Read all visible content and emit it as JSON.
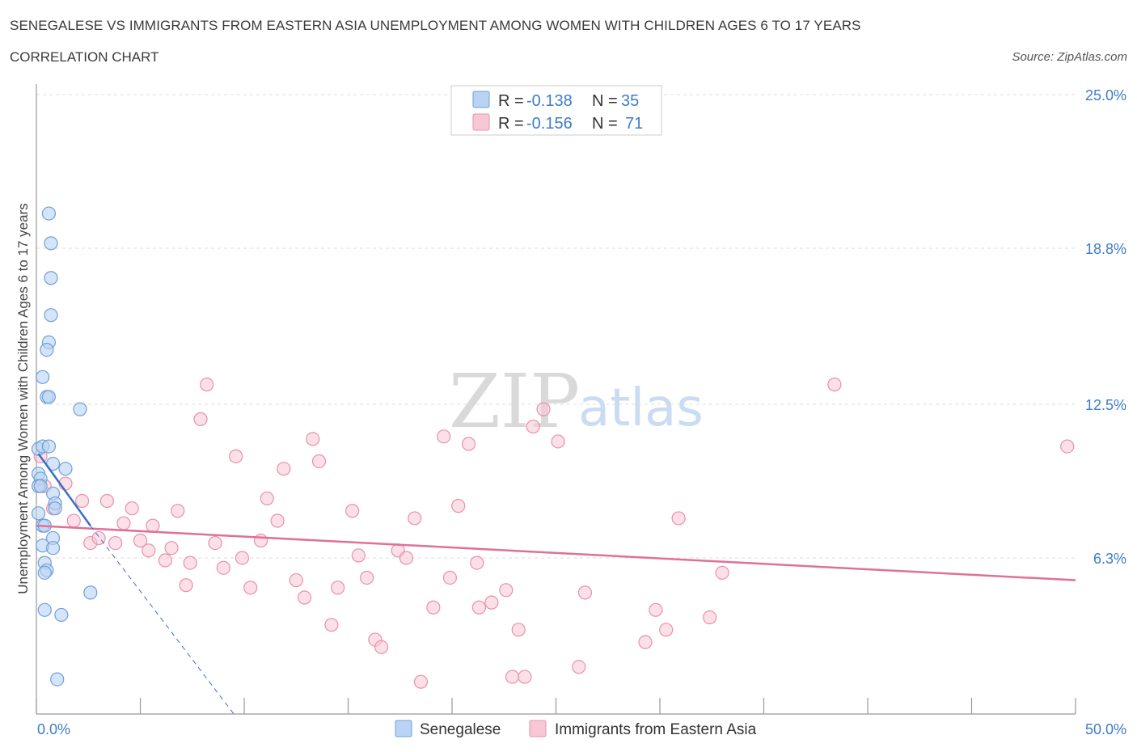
{
  "title": "SENEGALESE VS IMMIGRANTS FROM EASTERN ASIA UNEMPLOYMENT AMONG WOMEN WITH CHILDREN AGES 6 TO 17 YEARS",
  "subtitle": "CORRELATION CHART",
  "source": "Source: ZipAtlas.com",
  "watermark": {
    "zip": "ZIP",
    "atlas": "atlas"
  },
  "legend": {
    "rows": [
      {
        "r_label": "R =",
        "r_value": "-0.138",
        "n_label": "N =",
        "n_value": "35"
      },
      {
        "r_label": "R =",
        "r_value": "-0.156",
        "n_label": "N =",
        "n_value": "71"
      }
    ]
  },
  "colors": {
    "senegalese_fill": "#b9d3f5",
    "senegalese_stroke": "#6f9fd8",
    "senegalese_line": "#3a6fc6",
    "eastasia_fill": "#f8c7d6",
    "eastasia_stroke": "#e890ad",
    "eastasia_line": "#e07098",
    "axis_text": "#3d7cc9",
    "grid": "#dddddd"
  },
  "chart_data": {
    "type": "scatter",
    "title": "SENEGALESE VS IMMIGRANTS FROM EASTERN ASIA UNEMPLOYMENT AMONG WOMEN WITH CHILDREN AGES 6 TO 17 YEARS",
    "xlabel": "",
    "ylabel": "Unemployment Among Women with Children Ages 6 to 17 years",
    "xlim": [
      0,
      50
    ],
    "ylim": [
      0,
      25
    ],
    "x_tick_labels": [
      "0.0%",
      "50.0%"
    ],
    "y_ticks": [
      6.3,
      12.5,
      18.8,
      25.0
    ],
    "y_tick_labels": [
      "6.3%",
      "12.5%",
      "18.8%",
      "25.0%"
    ],
    "grid": "horizontal dashed",
    "legend_position": "top-center",
    "series": [
      {
        "name": "Senegalese",
        "r": -0.138,
        "n": 35,
        "trend": {
          "x0": 0.1,
          "y0": 10.5,
          "x1": 2.6,
          "y1": 7.6,
          "dashed_to_x": 9.5,
          "dashed_to_y": 0.0
        },
        "points": [
          [
            0.6,
            20.2
          ],
          [
            0.7,
            19.0
          ],
          [
            0.7,
            17.6
          ],
          [
            0.7,
            16.1
          ],
          [
            0.6,
            15.0
          ],
          [
            0.5,
            14.7
          ],
          [
            0.3,
            13.6
          ],
          [
            0.5,
            12.8
          ],
          [
            0.6,
            12.8
          ],
          [
            2.1,
            12.3
          ],
          [
            0.1,
            10.7
          ],
          [
            0.3,
            10.8
          ],
          [
            0.6,
            10.8
          ],
          [
            0.8,
            10.1
          ],
          [
            1.4,
            9.9
          ],
          [
            0.1,
            9.7
          ],
          [
            0.2,
            9.5
          ],
          [
            0.1,
            9.2
          ],
          [
            0.2,
            9.2
          ],
          [
            0.8,
            8.9
          ],
          [
            0.9,
            8.5
          ],
          [
            0.9,
            8.3
          ],
          [
            0.1,
            8.1
          ],
          [
            0.3,
            7.6
          ],
          [
            0.4,
            7.6
          ],
          [
            0.8,
            7.1
          ],
          [
            0.3,
            6.8
          ],
          [
            0.8,
            6.7
          ],
          [
            0.4,
            6.1
          ],
          [
            0.5,
            5.8
          ],
          [
            0.4,
            5.7
          ],
          [
            2.6,
            4.9
          ],
          [
            0.4,
            4.2
          ],
          [
            1.2,
            4.0
          ],
          [
            1.0,
            1.4
          ]
        ]
      },
      {
        "name": "Immigrants from Eastern Asia",
        "r": -0.156,
        "n": 71,
        "trend": {
          "x0": 0.0,
          "y0": 7.6,
          "x1": 50.0,
          "y1": 5.4
        },
        "points": [
          [
            0.2,
            10.4
          ],
          [
            0.4,
            9.2
          ],
          [
            0.8,
            8.3
          ],
          [
            1.4,
            9.3
          ],
          [
            1.8,
            7.8
          ],
          [
            2.2,
            8.6
          ],
          [
            2.6,
            6.9
          ],
          [
            3.0,
            7.1
          ],
          [
            3.4,
            8.6
          ],
          [
            3.8,
            6.9
          ],
          [
            4.2,
            7.7
          ],
          [
            4.6,
            8.3
          ],
          [
            5.0,
            7.0
          ],
          [
            5.4,
            6.6
          ],
          [
            5.6,
            7.6
          ],
          [
            6.2,
            6.2
          ],
          [
            6.5,
            6.7
          ],
          [
            6.8,
            8.2
          ],
          [
            7.2,
            5.2
          ],
          [
            7.4,
            6.1
          ],
          [
            7.9,
            11.9
          ],
          [
            8.2,
            13.3
          ],
          [
            8.6,
            6.9
          ],
          [
            9.0,
            5.9
          ],
          [
            9.6,
            10.4
          ],
          [
            9.9,
            6.3
          ],
          [
            10.3,
            5.1
          ],
          [
            10.8,
            7.0
          ],
          [
            11.1,
            8.7
          ],
          [
            11.6,
            7.8
          ],
          [
            11.9,
            9.9
          ],
          [
            12.5,
            5.4
          ],
          [
            12.9,
            4.7
          ],
          [
            13.3,
            11.1
          ],
          [
            13.6,
            10.2
          ],
          [
            14.2,
            3.6
          ],
          [
            14.5,
            5.1
          ],
          [
            15.2,
            8.2
          ],
          [
            15.5,
            6.4
          ],
          [
            15.9,
            5.5
          ],
          [
            16.3,
            3.0
          ],
          [
            16.6,
            2.7
          ],
          [
            17.4,
            6.6
          ],
          [
            17.8,
            6.3
          ],
          [
            18.2,
            7.9
          ],
          [
            18.5,
            1.3
          ],
          [
            19.1,
            4.3
          ],
          [
            19.6,
            11.2
          ],
          [
            19.9,
            5.5
          ],
          [
            20.3,
            8.4
          ],
          [
            20.8,
            10.9
          ],
          [
            21.2,
            6.1
          ],
          [
            21.3,
            4.3
          ],
          [
            21.9,
            4.5
          ],
          [
            22.6,
            5.0
          ],
          [
            22.9,
            1.5
          ],
          [
            23.2,
            3.4
          ],
          [
            23.5,
            1.5
          ],
          [
            23.9,
            11.6
          ],
          [
            24.4,
            12.3
          ],
          [
            25.1,
            11.0
          ],
          [
            26.1,
            1.9
          ],
          [
            26.4,
            4.9
          ],
          [
            29.3,
            2.9
          ],
          [
            29.8,
            4.2
          ],
          [
            30.3,
            3.4
          ],
          [
            30.9,
            7.9
          ],
          [
            32.4,
            3.9
          ],
          [
            33.0,
            5.7
          ],
          [
            38.4,
            13.3
          ],
          [
            49.6,
            10.8
          ]
        ]
      }
    ]
  },
  "bottom_legend": [
    "Senegalese",
    "Immigrants from Eastern Asia"
  ]
}
